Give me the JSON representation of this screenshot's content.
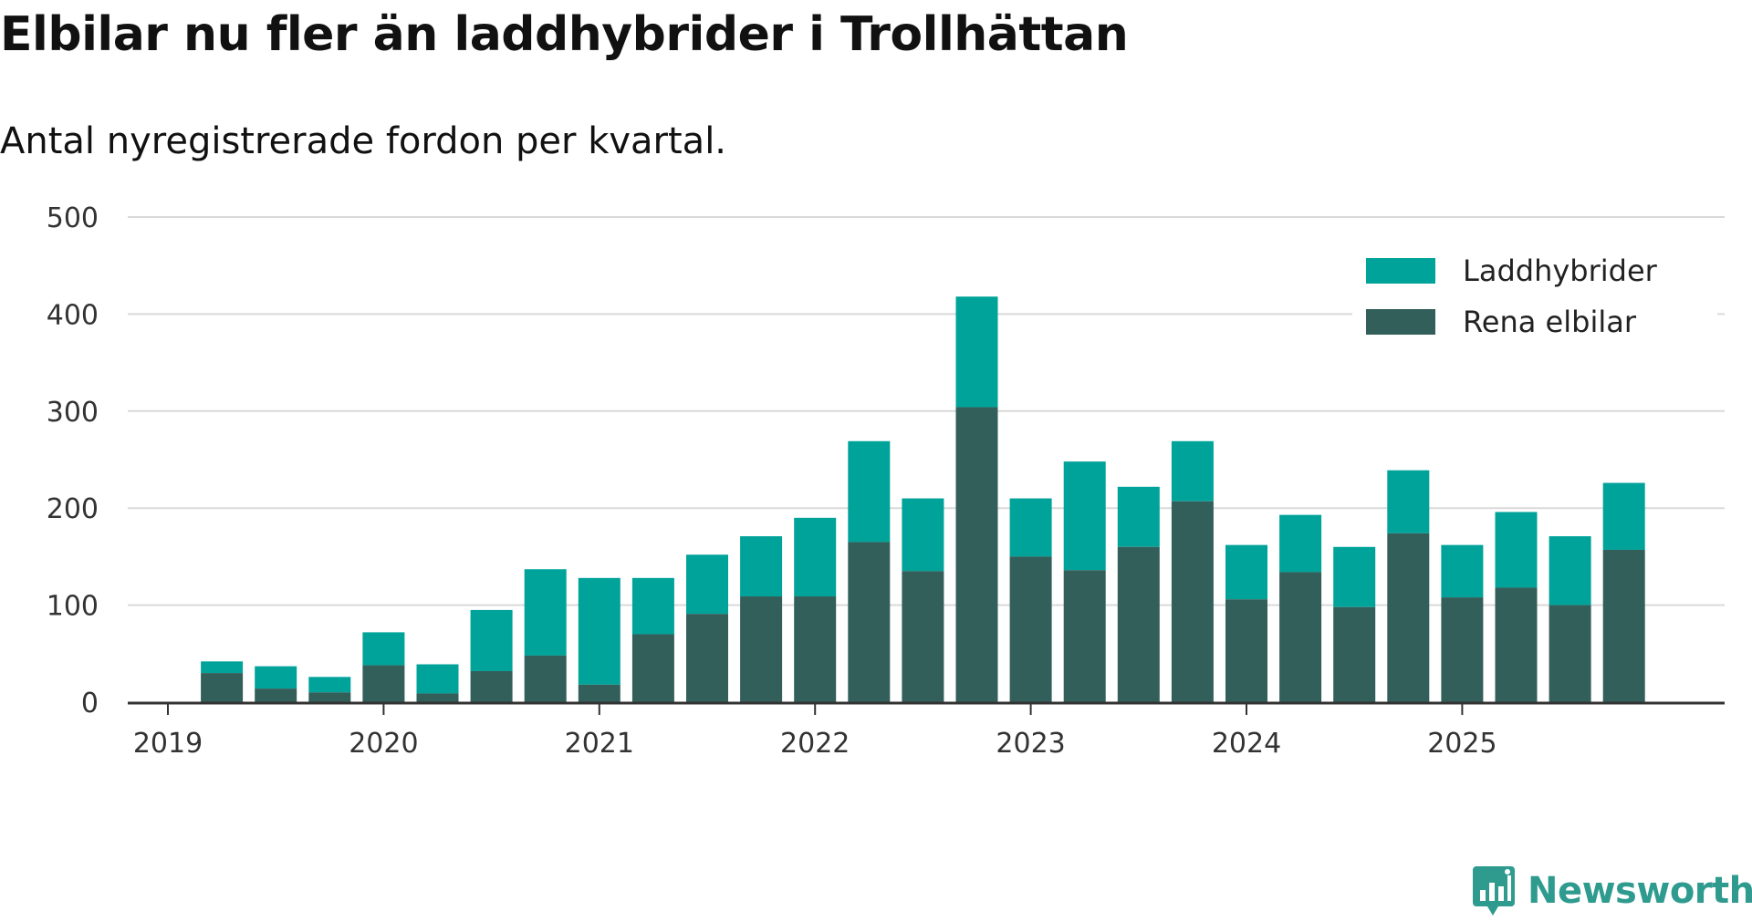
{
  "chart_data": {
    "type": "bar",
    "stacked": true,
    "title": "Elbilar nu fler än laddhybrider i Trollhättan",
    "subtitle": "Antal nyregistrerade fordon per kvartal.",
    "xlabel": "",
    "ylabel": "",
    "ylim": [
      0,
      500
    ],
    "y_ticks": [
      "0",
      "100",
      "200",
      "300",
      "400",
      "500"
    ],
    "x_ticks": [
      "2019",
      "2020",
      "2021",
      "2022",
      "2023",
      "2024",
      "2025"
    ],
    "categories": [
      "2019 Q2",
      "2019 Q3",
      "2019 Q4",
      "2020 Q1",
      "2020 Q2",
      "2020 Q3",
      "2020 Q4",
      "2021 Q1",
      "2021 Q2",
      "2021 Q3",
      "2021 Q4",
      "2022 Q1",
      "2022 Q2",
      "2022 Q3",
      "2022 Q4",
      "2023 Q1",
      "2023 Q2",
      "2023 Q3",
      "2023 Q4",
      "2024 Q1",
      "2024 Q2",
      "2024 Q3",
      "2024 Q4",
      "2025 Q1",
      "2025 Q2",
      "2025 Q3",
      "2025 Q4"
    ],
    "series": [
      {
        "name": "Rena elbilar",
        "color": "#335f5a",
        "values": [
          30,
          14,
          10,
          38,
          9,
          32,
          48,
          18,
          70,
          91,
          109,
          109,
          165,
          135,
          304,
          150,
          136,
          160,
          207,
          106,
          134,
          98,
          174,
          108,
          118,
          100,
          157
        ]
      },
      {
        "name": "Laddhybrider",
        "color": "#00a39a",
        "values": [
          12,
          23,
          16,
          34,
          30,
          63,
          89,
          110,
          58,
          61,
          62,
          81,
          104,
          75,
          114,
          60,
          112,
          62,
          62,
          56,
          59,
          62,
          65,
          54,
          78,
          71,
          69
        ]
      }
    ],
    "legend": {
      "placement": "top-right",
      "entries": [
        "Laddhybrider",
        "Rena elbilar"
      ]
    },
    "grid": true
  },
  "brand": {
    "name": "Newsworthy",
    "color": "#2f9b8f"
  }
}
